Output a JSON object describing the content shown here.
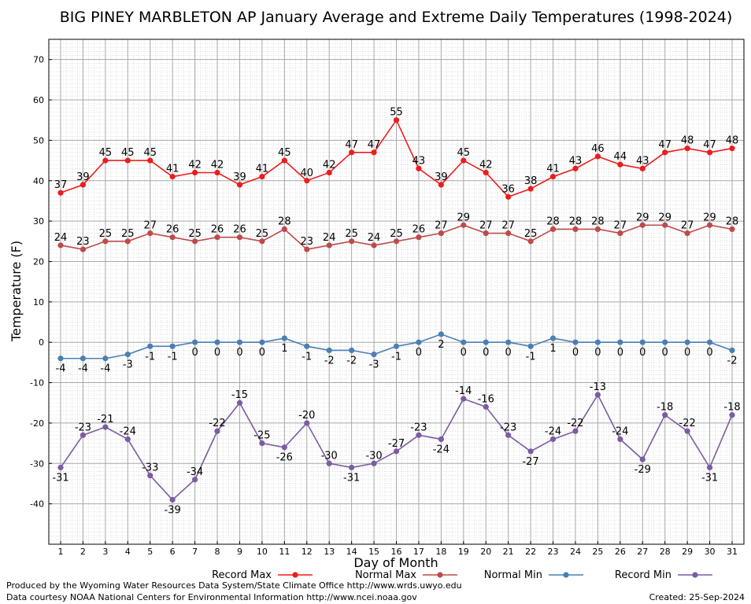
{
  "chart_data": {
    "type": "line",
    "title": "BIG PINEY MARBLETON AP January Average and Extreme Daily Temperatures (1998-2024)",
    "xlabel": "Day of Month",
    "ylabel": "Temperature (F)",
    "ylim": [
      -50,
      75
    ],
    "yticks": [
      -40,
      -30,
      -20,
      -10,
      0,
      10,
      20,
      30,
      40,
      50,
      60,
      70
    ],
    "x": [
      1,
      2,
      3,
      4,
      5,
      6,
      7,
      8,
      9,
      10,
      11,
      12,
      13,
      14,
      15,
      16,
      17,
      18,
      19,
      20,
      21,
      22,
      23,
      24,
      25,
      26,
      27,
      28,
      29,
      30,
      31
    ],
    "grid": true,
    "legend_position": "bottom",
    "series": [
      {
        "name": "Record Max",
        "color": "#ee1c1c",
        "values": [
          37,
          39,
          45,
          45,
          45,
          41,
          42,
          42,
          39,
          41,
          45,
          40,
          42,
          47,
          47,
          55,
          43,
          39,
          45,
          42,
          36,
          38,
          41,
          43,
          46,
          44,
          43,
          47,
          48,
          47,
          48
        ]
      },
      {
        "name": "Normal Max",
        "color": "#bf4a4a",
        "values": [
          24,
          23,
          25,
          25,
          27,
          26,
          25,
          26,
          26,
          25,
          28,
          23,
          24,
          25,
          24,
          25,
          26,
          27,
          29,
          27,
          27,
          25,
          28,
          28,
          28,
          27,
          29,
          29,
          27,
          29,
          28
        ]
      },
      {
        "name": "Normal Min",
        "color": "#4a7fb5",
        "values": [
          -4,
          -4,
          -4,
          -3,
          -1,
          -1,
          0,
          0,
          0,
          0,
          1,
          -1,
          -2,
          -2,
          -3,
          -1,
          0,
          2,
          0,
          0,
          0,
          -1,
          1,
          0,
          0,
          0,
          0,
          0,
          0,
          0,
          -2
        ]
      },
      {
        "name": "Record Min",
        "color": "#7b5ba3",
        "values": [
          -31,
          -23,
          -21,
          -24,
          -33,
          -39,
          -34,
          -22,
          -15,
          -25,
          -26,
          -20,
          -30,
          -31,
          -30,
          -27,
          -23,
          -24,
          -14,
          -16,
          -23,
          -27,
          -24,
          -22,
          -13,
          -24,
          -29,
          -18,
          -22,
          -31,
          -18
        ]
      }
    ]
  },
  "footer": {
    "line1": "Produced by the Wyoming Water Resources Data System/State Climate Office http://www.wrds.uwyo.edu",
    "line2": "Data courtesy NOAA National Centers for Environmental Information http://www.ncei.noaa.gov",
    "created": "Created:  25-Sep-2024"
  }
}
